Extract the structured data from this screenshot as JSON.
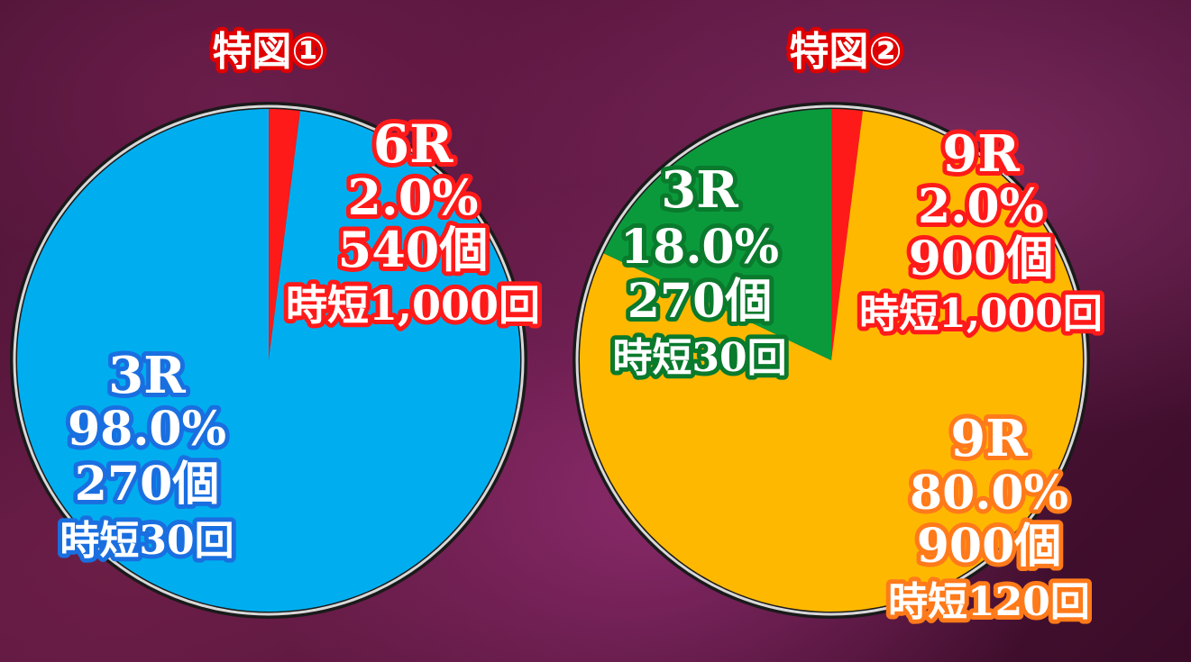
{
  "chart_data": [
    {
      "type": "pie",
      "title": "特図①",
      "slices": [
        {
          "round": "6R",
          "percent": "2.0%",
          "value": 2.0,
          "balls": "540個",
          "jitan": "時短1,000回",
          "color": "#ff1a1a",
          "text_color": "#ffffff",
          "outline": "#ff1a1a"
        },
        {
          "round": "3R",
          "percent": "98.0%",
          "value": 98.0,
          "balls": "270個",
          "jitan": "時短30回",
          "color": "#00aeef",
          "text_color": "#ffffff",
          "outline": "#1a6fe0"
        }
      ]
    },
    {
      "type": "pie",
      "title": "特図②",
      "slices": [
        {
          "round": "9R",
          "percent": "2.0%",
          "value": 2.0,
          "balls": "900個",
          "jitan": "時短1,000回",
          "color": "#ff1a1a",
          "text_color": "#ffffff",
          "outline": "#ff1a1a"
        },
        {
          "round": "9R",
          "percent": "80.0%",
          "value": 80.0,
          "balls": "900個",
          "jitan": "時短120回",
          "color": "#ffb800",
          "text_color": "#ffffff",
          "outline": "#ff7a1a"
        },
        {
          "round": "3R",
          "percent": "18.0%",
          "value": 18.0,
          "balls": "270個",
          "jitan": "時短30回",
          "color": "#0a9a3c",
          "text_color": "#ffffff",
          "outline": "#0a7a2c"
        }
      ]
    }
  ]
}
